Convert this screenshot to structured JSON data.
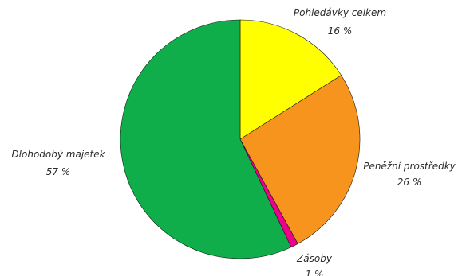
{
  "chart_data": {
    "type": "pie",
    "title": "",
    "start": "top",
    "direction": "clockwise",
    "slices": [
      {
        "label": "Pohledávky celkem",
        "value": 16,
        "value_label": "16 %",
        "color": "#ffff00"
      },
      {
        "label": "Peněžní prostředky",
        "value": 26,
        "value_label": "26 %",
        "color": "#f7941d"
      },
      {
        "label": "Zásoby",
        "value": 1,
        "value_label": "1 %",
        "color": "#ec008c"
      },
      {
        "label": "Dlohodobý majetek",
        "value": 57,
        "value_label": "57 %",
        "color": "#0fae4b"
      }
    ]
  }
}
